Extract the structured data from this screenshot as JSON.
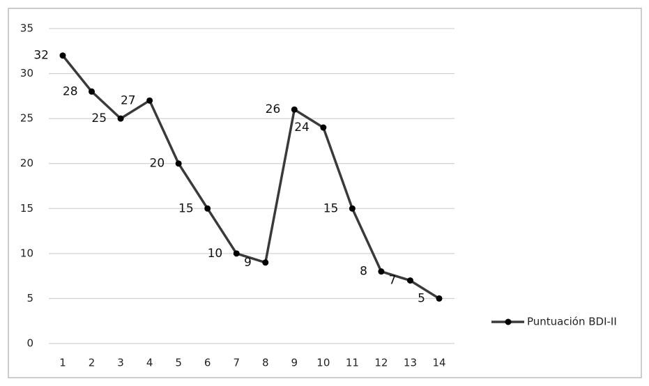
{
  "chart_data": {
    "type": "line",
    "categories": [
      "1",
      "2",
      "3",
      "4",
      "5",
      "6",
      "7",
      "8",
      "9",
      "10",
      "11",
      "12",
      "13",
      "14"
    ],
    "series": [
      {
        "name": "Puntuación BDI-II",
        "color": "#3a3a3a",
        "values": [
          32,
          28,
          25,
          27,
          20,
          15,
          10,
          9,
          26,
          24,
          15,
          8,
          7,
          5
        ]
      }
    ],
    "ylim": [
      0,
      35
    ],
    "yticks": [
      0,
      5,
      10,
      15,
      20,
      25,
      30,
      35
    ],
    "grid": true,
    "legend": "right",
    "data_labels": true
  }
}
